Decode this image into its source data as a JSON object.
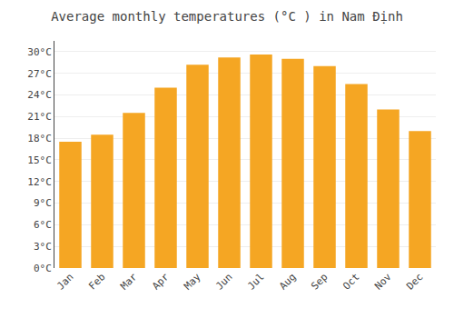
{
  "chart_data": {
    "type": "bar",
    "title": "Average monthly temperatures (°C ) in Nam Định",
    "categories": [
      "Jan",
      "Feb",
      "Mar",
      "Apr",
      "May",
      "Jun",
      "Jul",
      "Aug",
      "Sep",
      "Oct",
      "Nov",
      "Dec"
    ],
    "values": [
      17.5,
      18.5,
      21.5,
      25.0,
      28.2,
      29.2,
      29.6,
      29.0,
      28.0,
      25.5,
      22.0,
      19.0
    ],
    "color": "#F5A623",
    "ylim": [
      0,
      31.5
    ],
    "yticks": [
      {
        "value": 0,
        "label": "0°C"
      },
      {
        "value": 3,
        "label": "3°C"
      },
      {
        "value": 6,
        "label": "6°C"
      },
      {
        "value": 9,
        "label": "9°C"
      },
      {
        "value": 12,
        "label": "12°C"
      },
      {
        "value": 15,
        "label": "15°C"
      },
      {
        "value": 18,
        "label": "18°C"
      },
      {
        "value": 21,
        "label": "21°C"
      },
      {
        "value": 24,
        "label": "24°C"
      },
      {
        "value": 27,
        "label": "27°C"
      },
      {
        "value": 30,
        "label": "30°C"
      }
    ],
    "grid": true
  }
}
